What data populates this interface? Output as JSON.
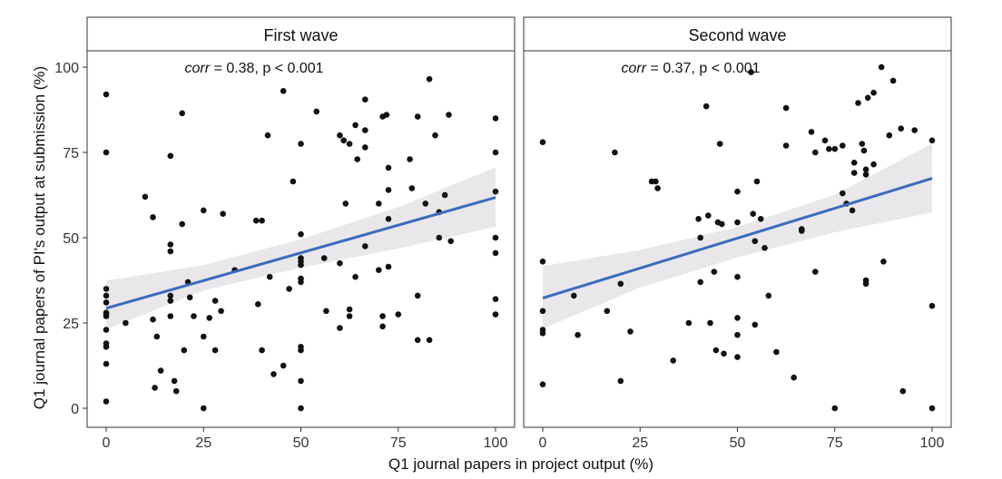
{
  "chart_data": {
    "type": "scatter",
    "xlabel": "Q1 journal papers in project output (%)",
    "ylabel": "Q1 journal papers of PI's output at submission (%)",
    "xlim": [
      -5,
      105
    ],
    "ylim": [
      -5,
      105
    ],
    "x_ticks": [
      0,
      25,
      50,
      75,
      100
    ],
    "y_ticks": [
      0,
      25,
      50,
      75,
      100
    ],
    "x_tick_labels": [
      "0",
      "25",
      "50",
      "75",
      "100"
    ],
    "y_tick_labels": [
      "0",
      "25",
      "50",
      "75",
      "100"
    ],
    "grid": false,
    "colors": {
      "point": "#111111",
      "fit_line": "#3a6bbf",
      "ci_band": "#e9e7ea",
      "strip_bg": "#ffffff",
      "panel_border": "#333333"
    },
    "panels": [
      {
        "strip_label": "First wave",
        "annotation": {
          "stat_name": "corr",
          "rest": " = 0.38, p < 0.001"
        },
        "fit": {
          "x": [
            0,
            100
          ],
          "y": [
            29.3,
            61.8
          ]
        },
        "ci": {
          "x": [
            0,
            25,
            50,
            75,
            100
          ],
          "lower": [
            23.1,
            34.5,
            41.2,
            46.8,
            53.2
          ],
          "upper": [
            37.4,
            42.0,
            49.5,
            59.0,
            70.6
          ]
        },
        "points": [
          [
            0,
            92
          ],
          [
            0,
            75
          ],
          [
            0,
            35
          ],
          [
            0,
            33
          ],
          [
            0,
            31
          ],
          [
            0,
            28
          ],
          [
            0,
            27.5
          ],
          [
            0,
            27
          ],
          [
            0,
            23
          ],
          [
            0,
            19
          ],
          [
            0,
            18
          ],
          [
            0,
            13
          ],
          [
            0,
            2
          ],
          [
            5,
            25
          ],
          [
            10,
            62
          ],
          [
            12,
            56
          ],
          [
            12,
            26
          ],
          [
            13,
            21
          ],
          [
            12.5,
            6
          ],
          [
            14,
            11
          ],
          [
            16.5,
            74
          ],
          [
            16.5,
            48
          ],
          [
            16.5,
            46
          ],
          [
            16.5,
            33
          ],
          [
            16.5,
            31.5
          ],
          [
            16.5,
            27
          ],
          [
            17.5,
            8
          ],
          [
            18,
            5
          ],
          [
            19.5,
            86.5
          ],
          [
            19.5,
            54
          ],
          [
            20,
            17
          ],
          [
            21,
            37
          ],
          [
            21.5,
            32.5
          ],
          [
            22.5,
            27
          ],
          [
            25,
            58
          ],
          [
            25,
            21
          ],
          [
            25,
            0
          ],
          [
            26.5,
            26.5
          ],
          [
            28,
            31.5
          ],
          [
            28,
            17
          ],
          [
            29.5,
            28.5
          ],
          [
            30,
            57
          ],
          [
            33,
            40.5
          ],
          [
            38.5,
            55
          ],
          [
            39,
            30.5
          ],
          [
            40,
            55
          ],
          [
            40,
            17
          ],
          [
            41.5,
            80
          ],
          [
            42,
            38.5
          ],
          [
            43,
            10
          ],
          [
            45.5,
            93
          ],
          [
            45.5,
            12.5
          ],
          [
            47,
            35
          ],
          [
            48,
            66.5
          ],
          [
            50,
            77.5
          ],
          [
            50,
            51
          ],
          [
            50,
            44
          ],
          [
            50,
            43
          ],
          [
            50,
            42
          ],
          [
            50,
            38
          ],
          [
            50,
            37
          ],
          [
            50,
            18
          ],
          [
            50,
            17
          ],
          [
            50,
            8
          ],
          [
            50,
            0
          ],
          [
            54,
            87
          ],
          [
            56,
            44
          ],
          [
            56.5,
            28.5
          ],
          [
            60,
            80
          ],
          [
            60,
            42.5
          ],
          [
            60,
            23.5
          ],
          [
            61,
            78.5
          ],
          [
            61.5,
            60
          ],
          [
            62.5,
            77.5
          ],
          [
            62.5,
            29
          ],
          [
            62.5,
            27
          ],
          [
            64,
            83
          ],
          [
            64.5,
            73
          ],
          [
            64,
            38.5
          ],
          [
            66.5,
            90.5
          ],
          [
            66.5,
            81.5
          ],
          [
            66.5,
            76.5
          ],
          [
            66.5,
            47.5
          ],
          [
            70,
            60
          ],
          [
            70,
            40.5
          ],
          [
            71,
            85.5
          ],
          [
            71,
            27
          ],
          [
            71,
            24
          ],
          [
            72,
            86
          ],
          [
            72.5,
            70.5
          ],
          [
            72.5,
            64
          ],
          [
            72.5,
            55.5
          ],
          [
            72.5,
            41.5
          ],
          [
            75,
            27.5
          ],
          [
            78,
            73
          ],
          [
            78.5,
            64.5
          ],
          [
            80,
            85.5
          ],
          [
            80,
            33
          ],
          [
            80,
            20
          ],
          [
            82,
            60
          ],
          [
            83,
            96.5
          ],
          [
            83,
            20
          ],
          [
            84.5,
            80
          ],
          [
            85.5,
            57.5
          ],
          [
            85.5,
            50
          ],
          [
            87,
            62.5
          ],
          [
            88,
            86
          ],
          [
            88.5,
            49
          ],
          [
            100,
            85
          ],
          [
            100,
            75
          ],
          [
            100,
            63.5
          ],
          [
            100,
            50
          ],
          [
            100,
            45.5
          ],
          [
            100,
            32
          ],
          [
            100,
            27.5
          ]
        ]
      },
      {
        "strip_label": "Second wave",
        "annotation": {
          "stat_name": "corr",
          "rest": " = 0.37, p < 0.001"
        },
        "fit": {
          "x": [
            0,
            100
          ],
          "y": [
            32.3,
            67.4
          ]
        },
        "ci": {
          "x": [
            0,
            25,
            50,
            75,
            100
          ],
          "lower": [
            23.3,
            35.4,
            44.2,
            51.6,
            57.4
          ],
          "upper": [
            41.7,
            46.4,
            53.1,
            62.6,
            77.6
          ]
        },
        "points": [
          [
            0,
            78
          ],
          [
            0,
            43
          ],
          [
            0,
            28.5
          ],
          [
            0,
            23
          ],
          [
            0,
            22
          ],
          [
            0,
            7
          ],
          [
            8,
            33
          ],
          [
            9,
            21.5
          ],
          [
            16.5,
            28.5
          ],
          [
            18.5,
            75
          ],
          [
            20,
            36.5
          ],
          [
            20,
            8
          ],
          [
            22.5,
            22.5
          ],
          [
            28,
            66.5
          ],
          [
            29,
            66.5
          ],
          [
            29.5,
            64.5
          ],
          [
            33.5,
            14
          ],
          [
            37.5,
            25
          ],
          [
            40,
            55.5
          ],
          [
            40.5,
            50
          ],
          [
            40.5,
            37
          ],
          [
            42,
            88.5
          ],
          [
            42.5,
            56.5
          ],
          [
            43,
            25
          ],
          [
            44,
            40
          ],
          [
            44.5,
            17
          ],
          [
            45,
            54.5
          ],
          [
            45.5,
            77.5
          ],
          [
            46,
            54
          ],
          [
            46.5,
            16
          ],
          [
            50,
            63.5
          ],
          [
            50,
            54.5
          ],
          [
            50,
            38.5
          ],
          [
            50,
            26.5
          ],
          [
            50,
            21.5
          ],
          [
            50,
            15
          ],
          [
            53.5,
            98.5
          ],
          [
            54,
            57
          ],
          [
            54.5,
            49
          ],
          [
            54.5,
            24.5
          ],
          [
            55,
            66.5
          ],
          [
            56,
            55.5
          ],
          [
            57,
            47
          ],
          [
            58,
            33
          ],
          [
            60,
            16.5
          ],
          [
            62.5,
            88
          ],
          [
            62.5,
            77
          ],
          [
            64.5,
            9
          ],
          [
            66.5,
            52.5
          ],
          [
            66.5,
            52
          ],
          [
            69,
            81
          ],
          [
            70,
            40
          ],
          [
            70,
            75
          ],
          [
            72.5,
            78.5
          ],
          [
            73.5,
            76
          ],
          [
            75,
            0
          ],
          [
            75,
            76
          ],
          [
            77,
            77
          ],
          [
            77,
            63
          ],
          [
            78,
            60
          ],
          [
            79.5,
            58
          ],
          [
            80,
            72
          ],
          [
            80,
            69
          ],
          [
            81,
            89.5
          ],
          [
            82,
            77.5
          ],
          [
            82.5,
            75.5
          ],
          [
            83,
            70
          ],
          [
            83,
            68.5
          ],
          [
            83,
            37.5
          ],
          [
            83,
            36.5
          ],
          [
            83.5,
            91
          ],
          [
            85,
            92.5
          ],
          [
            85,
            71.5
          ],
          [
            87,
            100
          ],
          [
            87.5,
            43
          ],
          [
            89,
            80
          ],
          [
            90,
            96
          ],
          [
            92,
            82
          ],
          [
            92.5,
            5
          ],
          [
            95.5,
            81.5
          ],
          [
            100,
            78.5
          ],
          [
            100,
            30
          ],
          [
            100,
            0
          ]
        ]
      }
    ]
  }
}
